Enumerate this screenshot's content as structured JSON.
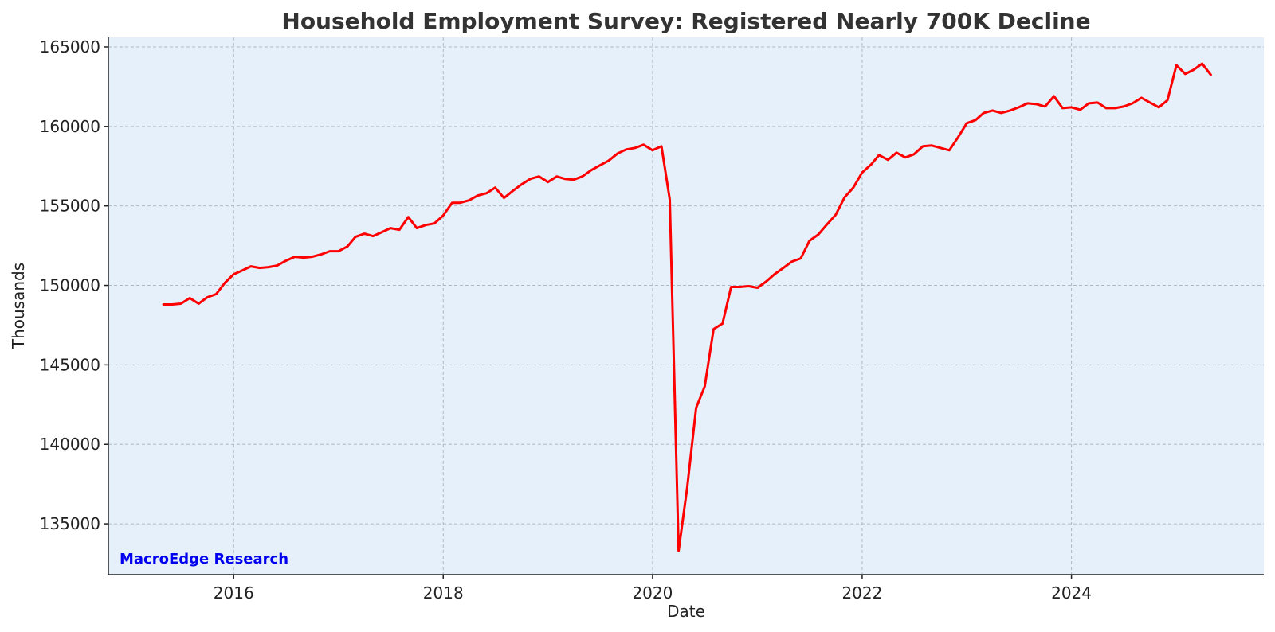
{
  "chart_data": {
    "type": "line",
    "title": "Household Employment Survey: Registered Nearly 700K Decline",
    "xlabel": "Date",
    "ylabel": "Thousands",
    "xlim": [
      "2014-10-21",
      "2025-11-02"
    ],
    "ylim": [
      131800,
      165600
    ],
    "x_ticks": [
      {
        "label": "2016",
        "date": "2016-01-01"
      },
      {
        "label": "2018",
        "date": "2018-01-01"
      },
      {
        "label": "2020",
        "date": "2020-01-01"
      },
      {
        "label": "2022",
        "date": "2022-01-01"
      },
      {
        "label": "2024",
        "date": "2024-01-01"
      }
    ],
    "y_ticks": [
      135000,
      140000,
      145000,
      150000,
      155000,
      160000,
      165000
    ],
    "grid": true,
    "annotation": "MacroEdge Research",
    "colors": {
      "series": "#ff0000",
      "plot_background": "#e6f0fa",
      "annotation": "#0000ee"
    },
    "series": [
      {
        "color": "#ff0000",
        "points": [
          [
            "2015-05-01",
            148800
          ],
          [
            "2015-06-01",
            148800
          ],
          [
            "2015-07-01",
            148850
          ],
          [
            "2015-08-01",
            149200
          ],
          [
            "2015-09-01",
            148850
          ],
          [
            "2015-10-01",
            149250
          ],
          [
            "2015-11-01",
            149450
          ],
          [
            "2015-12-01",
            150150
          ],
          [
            "2016-01-01",
            150700
          ],
          [
            "2016-02-01",
            150950
          ],
          [
            "2016-03-01",
            151200
          ],
          [
            "2016-04-01",
            151100
          ],
          [
            "2016-05-01",
            151150
          ],
          [
            "2016-06-01",
            151250
          ],
          [
            "2016-07-01",
            151550
          ],
          [
            "2016-08-01",
            151800
          ],
          [
            "2016-09-01",
            151750
          ],
          [
            "2016-10-01",
            151800
          ],
          [
            "2016-11-01",
            151950
          ],
          [
            "2016-12-01",
            152150
          ],
          [
            "2017-01-01",
            152150
          ],
          [
            "2017-02-01",
            152450
          ],
          [
            "2017-03-01",
            153050
          ],
          [
            "2017-04-01",
            153250
          ],
          [
            "2017-05-01",
            153100
          ],
          [
            "2017-06-01",
            153350
          ],
          [
            "2017-07-01",
            153600
          ],
          [
            "2017-08-01",
            153500
          ],
          [
            "2017-09-01",
            154300
          ],
          [
            "2017-10-01",
            153600
          ],
          [
            "2017-11-01",
            153800
          ],
          [
            "2017-12-01",
            153900
          ],
          [
            "2018-01-01",
            154400
          ],
          [
            "2018-02-01",
            155200
          ],
          [
            "2018-03-01",
            155200
          ],
          [
            "2018-04-01",
            155350
          ],
          [
            "2018-05-01",
            155650
          ],
          [
            "2018-06-01",
            155800
          ],
          [
            "2018-07-01",
            156150
          ],
          [
            "2018-08-01",
            155500
          ],
          [
            "2018-09-01",
            155950
          ],
          [
            "2018-10-01",
            156350
          ],
          [
            "2018-11-01",
            156700
          ],
          [
            "2018-12-01",
            156850
          ],
          [
            "2019-01-01",
            156500
          ],
          [
            "2019-02-01",
            156850
          ],
          [
            "2019-03-01",
            156700
          ],
          [
            "2019-04-01",
            156650
          ],
          [
            "2019-05-01",
            156850
          ],
          [
            "2019-06-01",
            157250
          ],
          [
            "2019-07-01",
            157550
          ],
          [
            "2019-08-01",
            157850
          ],
          [
            "2019-09-01",
            158300
          ],
          [
            "2019-10-01",
            158550
          ],
          [
            "2019-11-01",
            158650
          ],
          [
            "2019-12-01",
            158850
          ],
          [
            "2020-01-01",
            158500
          ],
          [
            "2020-02-01",
            158750
          ],
          [
            "2020-03-01",
            155400
          ],
          [
            "2020-04-01",
            133300
          ],
          [
            "2020-05-01",
            137300
          ],
          [
            "2020-06-01",
            142300
          ],
          [
            "2020-07-01",
            143650
          ],
          [
            "2020-08-01",
            147250
          ],
          [
            "2020-09-01",
            147600
          ],
          [
            "2020-10-01",
            149900
          ],
          [
            "2020-11-01",
            149900
          ],
          [
            "2020-12-01",
            149950
          ],
          [
            "2021-01-01",
            149850
          ],
          [
            "2021-02-01",
            150250
          ],
          [
            "2021-03-01",
            150700
          ],
          [
            "2021-04-01",
            151100
          ],
          [
            "2021-05-01",
            151500
          ],
          [
            "2021-06-01",
            151700
          ],
          [
            "2021-07-01",
            152800
          ],
          [
            "2021-08-01",
            153200
          ],
          [
            "2021-09-01",
            153850
          ],
          [
            "2021-10-01",
            154450
          ],
          [
            "2021-11-01",
            155550
          ],
          [
            "2021-12-01",
            156150
          ],
          [
            "2022-01-01",
            157100
          ],
          [
            "2022-02-01",
            157600
          ],
          [
            "2022-03-01",
            158200
          ],
          [
            "2022-04-01",
            157900
          ],
          [
            "2022-05-01",
            158350
          ],
          [
            "2022-06-01",
            158050
          ],
          [
            "2022-07-01",
            158250
          ],
          [
            "2022-08-01",
            158750
          ],
          [
            "2022-09-01",
            158800
          ],
          [
            "2022-10-01",
            158650
          ],
          [
            "2022-11-01",
            158500
          ],
          [
            "2022-12-01",
            159300
          ],
          [
            "2023-01-01",
            160200
          ],
          [
            "2023-02-01",
            160400
          ],
          [
            "2023-03-01",
            160850
          ],
          [
            "2023-04-01",
            161000
          ],
          [
            "2023-05-01",
            160850
          ],
          [
            "2023-06-01",
            161000
          ],
          [
            "2023-07-01",
            161200
          ],
          [
            "2023-08-01",
            161450
          ],
          [
            "2023-09-01",
            161400
          ],
          [
            "2023-10-01",
            161250
          ],
          [
            "2023-11-01",
            161900
          ],
          [
            "2023-12-01",
            161150
          ],
          [
            "2024-01-01",
            161200
          ],
          [
            "2024-02-01",
            161050
          ],
          [
            "2024-03-01",
            161450
          ],
          [
            "2024-04-01",
            161500
          ],
          [
            "2024-05-01",
            161150
          ],
          [
            "2024-06-01",
            161150
          ],
          [
            "2024-07-01",
            161250
          ],
          [
            "2024-08-01",
            161450
          ],
          [
            "2024-09-01",
            161800
          ],
          [
            "2024-10-01",
            161500
          ],
          [
            "2024-11-01",
            161200
          ],
          [
            "2024-12-01",
            161650
          ],
          [
            "2025-01-01",
            163850
          ],
          [
            "2025-02-01",
            163300
          ],
          [
            "2025-03-01",
            163550
          ],
          [
            "2025-04-01",
            163950
          ],
          [
            "2025-05-01",
            163250
          ]
        ]
      }
    ]
  }
}
